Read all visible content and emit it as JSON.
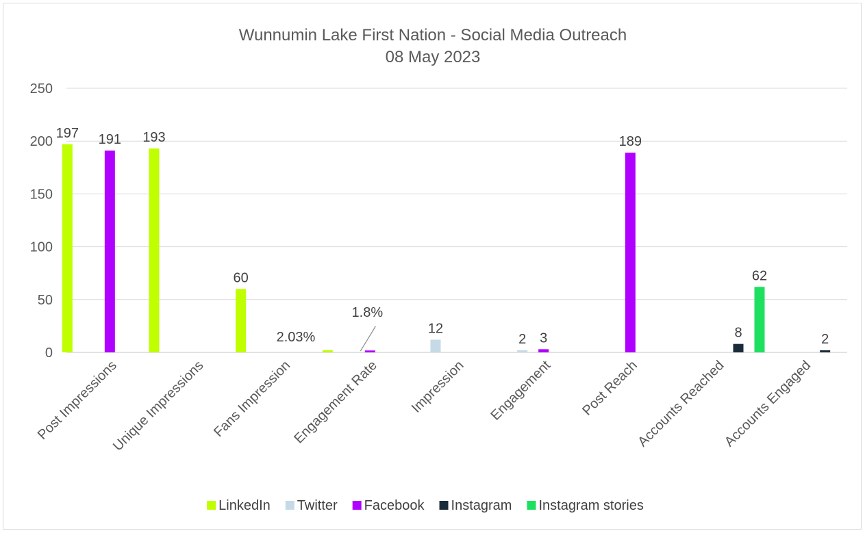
{
  "chart_data": {
    "type": "bar",
    "title": "Wunnumin Lake First Nation - Social Media Outreach",
    "subtitle": "08 May 2023",
    "xlabel": "",
    "ylabel": "",
    "ylim": [
      0,
      250
    ],
    "yticks": [
      0,
      50,
      100,
      150,
      200,
      250
    ],
    "grid": true,
    "legend_position": "bottom",
    "categories": [
      "Post Impressions",
      "Unique Impressions",
      "Fans Impression",
      "Engagement Rate",
      "Impression",
      "Engagement",
      "Post Reach",
      "Accounts Reached",
      "Accounts Engaged"
    ],
    "series": [
      {
        "name": "LinkedIn",
        "color": "#bfff00",
        "values": [
          197,
          193,
          60,
          2.03,
          null,
          null,
          null,
          null,
          null
        ],
        "labels": [
          "197",
          "193",
          "60",
          "2.03%",
          null,
          null,
          null,
          null,
          null
        ]
      },
      {
        "name": "Twitter",
        "color": "#c5dae6",
        "values": [
          null,
          null,
          null,
          null,
          12,
          2,
          null,
          null,
          null
        ],
        "labels": [
          null,
          null,
          null,
          null,
          "12",
          "2",
          null,
          null,
          null
        ]
      },
      {
        "name": "Facebook",
        "color": "#b000ff",
        "values": [
          191,
          null,
          null,
          1.8,
          null,
          3,
          189,
          null,
          null
        ],
        "labels": [
          "191",
          null,
          null,
          "1.8%",
          null,
          "3",
          "189",
          null,
          null
        ]
      },
      {
        "name": "Instagram",
        "color": "#1a2b3a",
        "values": [
          null,
          null,
          null,
          null,
          null,
          null,
          null,
          8,
          2
        ],
        "labels": [
          null,
          null,
          null,
          null,
          null,
          null,
          null,
          "8",
          "2"
        ]
      },
      {
        "name": "Instagram stories",
        "color": "#1ee060",
        "values": [
          null,
          null,
          null,
          null,
          null,
          null,
          null,
          62,
          null
        ],
        "labels": [
          null,
          null,
          null,
          null,
          null,
          null,
          null,
          "62",
          null
        ]
      }
    ]
  }
}
